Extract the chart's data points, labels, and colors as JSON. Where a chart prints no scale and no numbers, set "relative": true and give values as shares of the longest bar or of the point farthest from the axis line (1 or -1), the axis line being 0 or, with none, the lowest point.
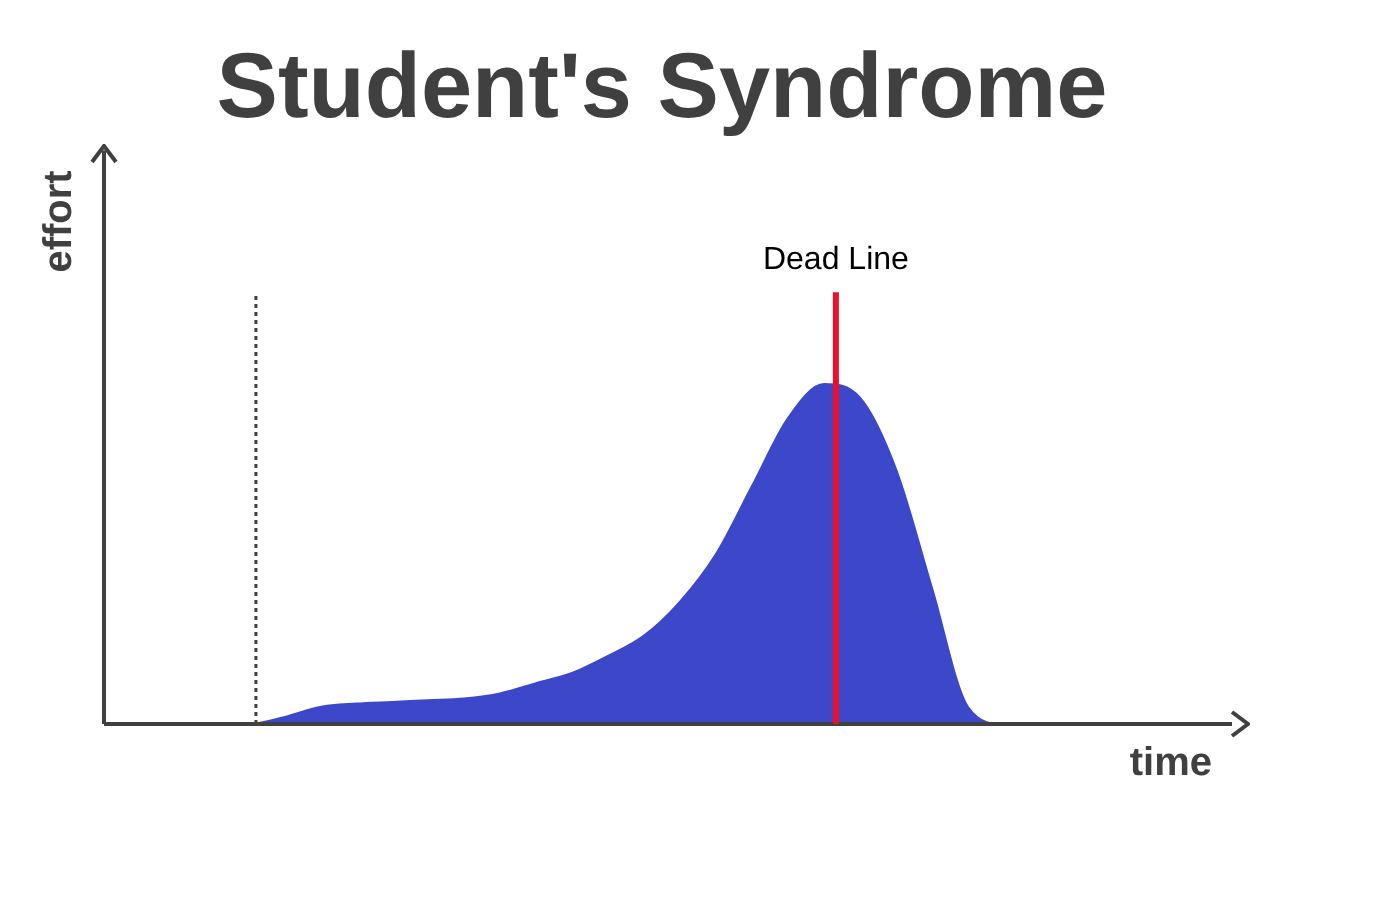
{
  "chart_data": {
    "type": "area",
    "title": "Student's Syndrome",
    "xlabel": "time",
    "ylabel": "effort",
    "relative": true,
    "legend": false,
    "marker": "none",
    "annotations": [
      "Dead Line"
    ],
    "categories": [
      null,
      null,
      null,
      null,
      null,
      null,
      null,
      null,
      null,
      null,
      null,
      null,
      null,
      null,
      null,
      null,
      null,
      null,
      null,
      null,
      null,
      null,
      null,
      null,
      null,
      null,
      null,
      null,
      null,
      null,
      null,
      null
    ],
    "series": [
      {
        "color": "#3d47c9",
        "values": [
          0,
          0,
          0,
          0,
          0,
          0.02,
          0.05,
          0.06,
          0.065,
          0.07,
          0.075,
          0.09,
          0.12,
          0.15,
          0.2,
          0.26,
          0.36,
          0.5,
          0.7,
          0.9,
          1,
          0.96,
          0.75,
          0.4,
          0.05,
          0,
          0,
          0,
          0,
          0,
          0,
          0
        ]
      }
    ]
  }
}
